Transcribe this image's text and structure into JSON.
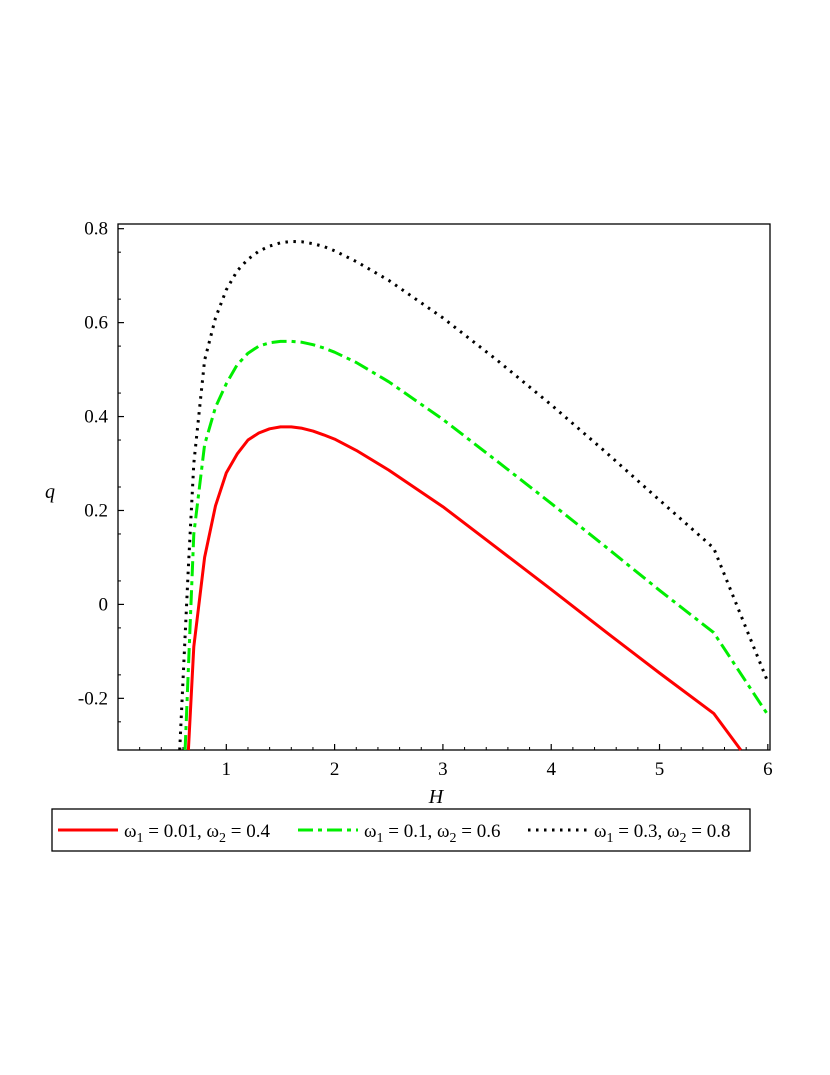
{
  "chart_data": {
    "type": "line",
    "xlabel": "H",
    "ylabel": "q",
    "xlim": [
      0,
      6.02
    ],
    "ylim": [
      -0.31,
      0.81
    ],
    "x_ticks": [
      1,
      2,
      3,
      4,
      5,
      6
    ],
    "y_ticks": [
      -0.2,
      0,
      0.2,
      0.4,
      0.6,
      0.8
    ],
    "x_tick_labels": [
      "1",
      "2",
      "3",
      "4",
      "5",
      "6"
    ],
    "y_tick_labels": [
      "-0.2",
      "0",
      "0.2",
      "0.4",
      "0.6",
      "0.8"
    ],
    "grid": false,
    "legend_position": "bottom",
    "series": [
      {
        "name": "ω1 = 0.01, ω2 = 0.4",
        "legend": {
          "sym1": "ω",
          "sub1": "1",
          "mid": " = 0.01, ",
          "sym2": "ω",
          "sub2": "2",
          "end": " = 0.4"
        },
        "color": "#ff0000",
        "style": "solid",
        "x": [
          0.65,
          0.7,
          0.8,
          0.9,
          1.0,
          1.1,
          1.2,
          1.3,
          1.4,
          1.5,
          1.6,
          1.7,
          1.8,
          1.9,
          2.0,
          2.2,
          2.5,
          3.0,
          3.5,
          4.0,
          4.5,
          5.0,
          5.5,
          5.75
        ],
        "y": [
          -0.31,
          -0.09,
          0.1,
          0.21,
          0.28,
          0.32,
          0.35,
          0.365,
          0.374,
          0.378,
          0.378,
          0.375,
          0.369,
          0.361,
          0.352,
          0.328,
          0.286,
          0.208,
          0.12,
          0.032,
          -0.058,
          -0.146,
          -0.232,
          -0.31
        ]
      },
      {
        "name": "ω1 = 0.1, ω2 = 0.6",
        "legend": {
          "sym1": "ω",
          "sub1": "1",
          "mid": " = 0.1, ",
          "sym2": "ω",
          "sub2": "2",
          "end": " = 0.6"
        },
        "color": "#00ee00",
        "style": "dashdot",
        "x": [
          0.62,
          0.7,
          0.8,
          0.9,
          1.0,
          1.1,
          1.2,
          1.3,
          1.4,
          1.5,
          1.6,
          1.7,
          1.8,
          1.9,
          2.0,
          2.2,
          2.5,
          3.0,
          3.5,
          4.0,
          4.5,
          5.0,
          5.5,
          6.0
        ],
        "y": [
          -0.31,
          0.15,
          0.34,
          0.42,
          0.47,
          0.51,
          0.535,
          0.55,
          0.557,
          0.56,
          0.56,
          0.558,
          0.553,
          0.546,
          0.537,
          0.515,
          0.474,
          0.394,
          0.305,
          0.215,
          0.123,
          0.03,
          -0.06,
          -0.235
        ]
      },
      {
        "name": "ω1 = 0.3, ω2 = 0.8",
        "legend": {
          "sym1": "ω",
          "sub1": "1",
          "mid": " = 0.3, ",
          "sym2": "ω",
          "sub2": "2",
          "end": " = 0.8"
        },
        "color": "#000000",
        "style": "dotted",
        "x": [
          0.57,
          0.65,
          0.7,
          0.8,
          0.9,
          1.0,
          1.1,
          1.2,
          1.3,
          1.4,
          1.5,
          1.6,
          1.7,
          1.8,
          1.9,
          2.0,
          2.2,
          2.5,
          3.0,
          3.5,
          4.0,
          4.5,
          5.0,
          5.5,
          6.0
        ],
        "y": [
          -0.31,
          0.08,
          0.3,
          0.52,
          0.61,
          0.67,
          0.71,
          0.735,
          0.752,
          0.763,
          0.77,
          0.773,
          0.772,
          0.768,
          0.762,
          0.753,
          0.73,
          0.69,
          0.61,
          0.52,
          0.425,
          0.325,
          0.222,
          0.12,
          -0.165
        ]
      }
    ]
  }
}
